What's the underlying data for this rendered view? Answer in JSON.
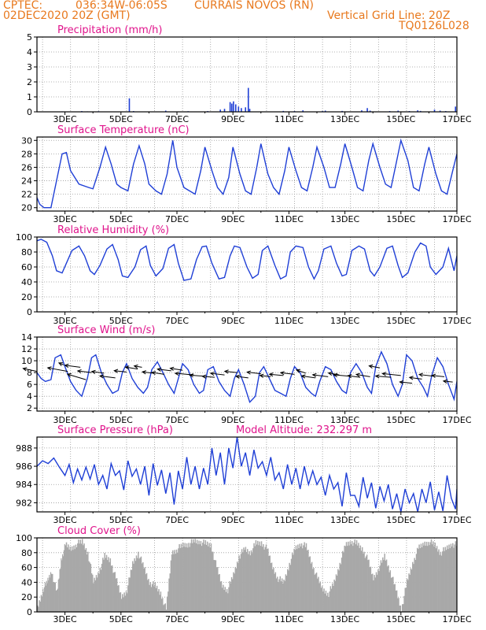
{
  "header": {
    "agency": "CPTEC:",
    "coords": "036:34W-06:05S",
    "station": "CURRAIS NOVOS (RN)",
    "run": "02DEC2020 20Z (GMT)",
    "grid_line": "Vertical Grid Line: 20Z",
    "code": "TQ0126L028"
  },
  "colors": {
    "header": "#e8791e",
    "title": "#e0148c",
    "series": "#1f3fd6",
    "cloud": "#a8a8a8",
    "wind_arrow": "#000000"
  },
  "x_ticks": [
    "3DEC",
    "5DEC",
    "7DEC",
    "9DEC",
    "11DEC",
    "13DEC",
    "15DEC",
    "17DEC"
  ],
  "chart_data": [
    {
      "type": "bar",
      "title": "Precipitation (mm/h)",
      "ylim": [
        0,
        5
      ],
      "yticks": [
        "0",
        "1",
        "2",
        "3",
        "4",
        "5"
      ],
      "days_start": 2.0,
      "days_end": 17.0,
      "bars": [
        [
          2.3,
          0.02
        ],
        [
          2.9,
          0.03
        ],
        [
          3.6,
          0.05
        ],
        [
          3.8,
          0.03
        ],
        [
          4.2,
          0.04
        ],
        [
          5.3,
          0.9
        ],
        [
          5.45,
          0.05
        ],
        [
          6.6,
          0.08
        ],
        [
          7.4,
          0.04
        ],
        [
          8.1,
          0.05
        ],
        [
          8.55,
          0.15
        ],
        [
          8.7,
          0.2
        ],
        [
          8.9,
          0.65
        ],
        [
          8.96,
          0.55
        ],
        [
          9.02,
          0.7
        ],
        [
          9.1,
          0.5
        ],
        [
          9.2,
          0.35
        ],
        [
          9.3,
          0.25
        ],
        [
          9.45,
          0.3
        ],
        [
          9.55,
          1.6
        ],
        [
          9.6,
          0.2
        ],
        [
          10.8,
          0.06
        ],
        [
          11.2,
          0.05
        ],
        [
          11.5,
          0.1
        ],
        [
          12.2,
          0.05
        ],
        [
          12.3,
          0.08
        ],
        [
          12.9,
          0.06
        ],
        [
          13.6,
          0.1
        ],
        [
          13.8,
          0.25
        ],
        [
          13.9,
          0.08
        ],
        [
          14.6,
          0.05
        ],
        [
          14.9,
          0.08
        ],
        [
          15.3,
          0.05
        ],
        [
          15.6,
          0.1
        ],
        [
          15.7,
          0.06
        ],
        [
          16.2,
          0.15
        ],
        [
          16.4,
          0.08
        ],
        [
          16.6,
          0.05
        ],
        [
          16.95,
          0.35
        ]
      ]
    },
    {
      "type": "line",
      "title": "Surface Temperature (nC)",
      "ylim": [
        19.5,
        30.5
      ],
      "yticks": [
        "20",
        "22",
        "24",
        "26",
        "28",
        "30"
      ],
      "x": [
        2.0,
        2.1,
        2.25,
        2.5,
        2.65,
        2.9,
        3.05,
        3.2,
        3.5,
        3.85,
        4.0,
        4.25,
        4.45,
        4.65,
        4.85,
        5.0,
        5.25,
        5.45,
        5.65,
        5.85,
        6.0,
        6.25,
        6.45,
        6.65,
        6.85,
        7.0,
        7.25,
        7.45,
        7.65,
        7.85,
        8.0,
        8.25,
        8.45,
        8.65,
        8.85,
        9.0,
        9.25,
        9.45,
        9.65,
        9.85,
        10.0,
        10.25,
        10.45,
        10.65,
        10.85,
        11.0,
        11.25,
        11.45,
        11.65,
        11.85,
        12.0,
        12.25,
        12.45,
        12.65,
        12.85,
        13.0,
        13.25,
        13.45,
        13.65,
        13.85,
        14.0,
        14.25,
        14.45,
        14.65,
        14.85,
        15.0,
        15.25,
        15.45,
        15.65,
        15.85,
        16.0,
        16.25,
        16.45,
        16.65,
        16.85,
        17.0
      ],
      "y": [
        21.5,
        20.5,
        20.0,
        20.0,
        23.0,
        28.0,
        28.2,
        25.5,
        23.5,
        23.0,
        22.8,
        26.0,
        29.0,
        26.5,
        23.5,
        23.0,
        22.5,
        26.5,
        29.2,
        26.5,
        23.5,
        22.5,
        22.0,
        25.0,
        30.0,
        26.0,
        23.0,
        22.5,
        22.0,
        25.5,
        29.0,
        25.5,
        23.0,
        22.0,
        24.5,
        29.0,
        25.0,
        22.5,
        22.0,
        26.0,
        29.5,
        25.0,
        23.0,
        22.0,
        25.5,
        29.0,
        25.5,
        23.0,
        22.5,
        26.0,
        29.0,
        26.0,
        23.0,
        23.0,
        26.5,
        29.5,
        26.0,
        23.0,
        22.5,
        27.0,
        29.5,
        26.0,
        23.5,
        23.0,
        27.0,
        30.0,
        27.0,
        23.0,
        22.5,
        26.5,
        29.0,
        25.0,
        22.5,
        22.0,
        25.5,
        28.0
      ]
    },
    {
      "type": "line",
      "title": "Relative Humidity (%)",
      "ylim": [
        0,
        100
      ],
      "yticks": [
        "0",
        "20",
        "40",
        "60",
        "80",
        "100"
      ],
      "x": [
        2.0,
        2.15,
        2.35,
        2.55,
        2.7,
        2.9,
        3.05,
        3.25,
        3.5,
        3.7,
        3.9,
        4.05,
        4.25,
        4.5,
        4.7,
        4.9,
        5.05,
        5.25,
        5.5,
        5.7,
        5.9,
        6.05,
        6.25,
        6.5,
        6.7,
        6.9,
        7.05,
        7.25,
        7.5,
        7.7,
        7.9,
        8.05,
        8.25,
        8.5,
        8.7,
        8.9,
        9.05,
        9.25,
        9.5,
        9.7,
        9.9,
        10.05,
        10.25,
        10.5,
        10.7,
        10.9,
        11.05,
        11.25,
        11.5,
        11.7,
        11.9,
        12.05,
        12.25,
        12.5,
        12.7,
        12.9,
        13.05,
        13.25,
        13.5,
        13.7,
        13.9,
        14.05,
        14.25,
        14.5,
        14.7,
        14.9,
        15.05,
        15.25,
        15.5,
        15.7,
        15.9,
        16.05,
        16.25,
        16.5,
        16.7,
        16.9,
        17.0
      ],
      "y": [
        95,
        97,
        93,
        75,
        55,
        52,
        65,
        82,
        88,
        75,
        55,
        50,
        62,
        84,
        90,
        70,
        48,
        46,
        60,
        83,
        88,
        62,
        48,
        58,
        85,
        90,
        65,
        42,
        44,
        70,
        87,
        88,
        65,
        44,
        46,
        75,
        88,
        86,
        60,
        45,
        50,
        82,
        88,
        62,
        44,
        48,
        80,
        88,
        86,
        60,
        44,
        55,
        84,
        88,
        65,
        48,
        50,
        82,
        88,
        84,
        55,
        48,
        60,
        85,
        88,
        62,
        46,
        52,
        80,
        92,
        88,
        60,
        50,
        60,
        85,
        55,
        75
      ]
    },
    {
      "type": "line",
      "title": "Surface Wind (m/s)",
      "ylim": [
        1.5,
        14
      ],
      "yticks": [
        "2",
        "4",
        "6",
        "8",
        "10",
        "12",
        "14"
      ],
      "x": [
        2.0,
        2.15,
        2.3,
        2.5,
        2.65,
        2.85,
        3.0,
        3.2,
        3.4,
        3.6,
        3.8,
        3.95,
        4.1,
        4.3,
        4.5,
        4.7,
        4.9,
        5.05,
        5.2,
        5.4,
        5.6,
        5.8,
        5.95,
        6.1,
        6.3,
        6.5,
        6.7,
        6.9,
        7.05,
        7.2,
        7.4,
        7.6,
        7.8,
        7.95,
        8.1,
        8.3,
        8.5,
        8.7,
        8.9,
        9.05,
        9.2,
        9.4,
        9.6,
        9.8,
        9.95,
        10.1,
        10.3,
        10.5,
        10.7,
        10.9,
        11.05,
        11.2,
        11.4,
        11.6,
        11.8,
        11.95,
        12.1,
        12.3,
        12.5,
        12.7,
        12.9,
        13.05,
        13.2,
        13.4,
        13.6,
        13.8,
        13.95,
        14.1,
        14.3,
        14.5,
        14.7,
        14.9,
        15.05,
        15.2,
        15.4,
        15.6,
        15.8,
        15.95,
        16.1,
        16.3,
        16.5,
        16.7,
        16.9,
        17.0
      ],
      "y": [
        8.0,
        7.0,
        6.5,
        6.8,
        10.5,
        11.0,
        9.0,
        6.5,
        5.0,
        4.0,
        7.0,
        10.5,
        11.0,
        8.0,
        6.0,
        4.5,
        5.0,
        8.0,
        9.5,
        7.0,
        5.5,
        4.5,
        5.5,
        8.5,
        9.8,
        8.0,
        6.0,
        4.5,
        7.0,
        9.5,
        8.5,
        6.0,
        4.5,
        5.0,
        8.5,
        9.0,
        6.5,
        5.0,
        4.0,
        7.0,
        8.5,
        6.0,
        3.0,
        4.0,
        8.0,
        9.0,
        7.0,
        5.0,
        4.5,
        4.0,
        7.0,
        9.0,
        8.0,
        5.5,
        4.5,
        4.0,
        6.5,
        9.0,
        8.5,
        6.5,
        5.0,
        4.5,
        8.0,
        9.5,
        8.0,
        5.5,
        4.5,
        9.0,
        11.5,
        9.5,
        6.0,
        4.0,
        6.0,
        11.0,
        10.0,
        7.0,
        5.5,
        4.0,
        7.5,
        10.5,
        9.0,
        6.0,
        3.5,
        6.5
      ],
      "arrows": [
        [
          2.0,
          8.2,
          -0.9,
          0.9
        ],
        [
          2.95,
          9.3,
          -0.3,
          0.6
        ],
        [
          3.1,
          8.2,
          -1.3,
          1.1
        ],
        [
          3.55,
          8.9,
          -1.0,
          0.6
        ],
        [
          3.75,
          6.8,
          -1.2,
          1.7
        ],
        [
          3.95,
          8.0,
          -0.9,
          0.5
        ],
        [
          4.4,
          7.9,
          -0.8,
          0.5
        ],
        [
          4.8,
          7.1,
          -1.0,
          0.6
        ],
        [
          5.2,
          8.1,
          -0.8,
          0.4
        ],
        [
          5.6,
          8.6,
          -0.8,
          0.6
        ],
        [
          5.75,
          8.9,
          -0.5,
          0.4
        ],
        [
          6.15,
          7.9,
          -0.7,
          0.4
        ],
        [
          6.55,
          7.7,
          -0.8,
          0.6
        ],
        [
          6.8,
          8.3,
          -0.9,
          0.5
        ],
        [
          7.2,
          8.4,
          -0.8,
          0.6
        ],
        [
          7.6,
          7.6,
          -1.2,
          0.5
        ],
        [
          7.95,
          7.4,
          -0.9,
          0.3
        ],
        [
          8.35,
          7.2,
          -0.8,
          0.3
        ],
        [
          8.7,
          7.6,
          -0.9,
          0.5
        ],
        [
          9.15,
          8.0,
          -0.8,
          0.4
        ],
        [
          9.55,
          7.1,
          -0.8,
          0.5
        ],
        [
          10.0,
          7.8,
          -0.9,
          0.5
        ],
        [
          10.35,
          7.3,
          -0.7,
          0.4
        ],
        [
          10.8,
          7.5,
          -0.9,
          0.4
        ],
        [
          11.2,
          7.7,
          -0.9,
          0.5
        ],
        [
          11.6,
          7.9,
          -0.6,
          1.0
        ],
        [
          11.95,
          7.1,
          -0.9,
          0.6
        ],
        [
          12.4,
          7.3,
          -1.0,
          0.6
        ],
        [
          12.8,
          7.6,
          -0.7,
          0.6
        ],
        [
          13.15,
          7.4,
          -1.0,
          0.4
        ],
        [
          13.55,
          7.2,
          -0.8,
          0.5
        ],
        [
          13.9,
          7.3,
          -0.9,
          0.7
        ],
        [
          14.25,
          8.8,
          -0.7,
          0.6
        ],
        [
          14.65,
          7.2,
          -1.0,
          0.4
        ],
        [
          15.0,
          7.5,
          -1.2,
          0.6
        ],
        [
          15.4,
          6.2,
          -0.8,
          0.4
        ],
        [
          15.75,
          6.9,
          -0.8,
          0.5
        ],
        [
          16.15,
          7.4,
          -0.9,
          0.5
        ],
        [
          16.55,
          7.3,
          -0.8,
          0.4
        ],
        [
          16.85,
          6.4,
          -0.6,
          0.3
        ]
      ]
    },
    {
      "type": "line",
      "title": "Surface Pressure (hPa)",
      "annotation": "Model Altitude: 232.297 m",
      "ylim": [
        981,
        989.2
      ],
      "yticks": [
        "982",
        "984",
        "986",
        "988"
      ],
      "x": [
        2.0,
        2.2,
        2.4,
        2.6,
        2.8,
        3.0,
        3.15,
        3.3,
        3.45,
        3.6,
        3.75,
        3.9,
        4.05,
        4.2,
        4.35,
        4.5,
        4.65,
        4.8,
        4.95,
        5.1,
        5.25,
        5.4,
        5.55,
        5.7,
        5.85,
        6.0,
        6.15,
        6.3,
        6.45,
        6.6,
        6.75,
        6.9,
        7.05,
        7.2,
        7.35,
        7.5,
        7.65,
        7.8,
        7.95,
        8.1,
        8.25,
        8.4,
        8.55,
        8.7,
        8.85,
        9.0,
        9.15,
        9.3,
        9.45,
        9.6,
        9.75,
        9.9,
        10.05,
        10.2,
        10.35,
        10.5,
        10.65,
        10.8,
        10.95,
        11.1,
        11.25,
        11.4,
        11.55,
        11.7,
        11.85,
        12.0,
        12.15,
        12.3,
        12.45,
        12.6,
        12.75,
        12.9,
        13.05,
        13.2,
        13.35,
        13.5,
        13.65,
        13.8,
        13.95,
        14.1,
        14.25,
        14.4,
        14.55,
        14.7,
        14.85,
        15.0,
        15.15,
        15.3,
        15.45,
        15.6,
        15.75,
        15.9,
        16.05,
        16.2,
        16.35,
        16.5,
        16.65,
        16.8,
        16.95,
        17.0
      ],
      "y": [
        986.0,
        986.6,
        986.3,
        986.9,
        985.9,
        985.0,
        986.2,
        984.2,
        985.7,
        984.5,
        985.9,
        984.6,
        986.2,
        984.0,
        985.0,
        983.5,
        986.3,
        985.0,
        985.5,
        983.4,
        986.6,
        984.9,
        985.7,
        984.0,
        986.0,
        982.8,
        986.3,
        983.9,
        985.6,
        983.0,
        985.3,
        981.8,
        985.5,
        983.5,
        987.0,
        984.0,
        986.0,
        983.5,
        985.8,
        984.0,
        988.0,
        985.0,
        987.5,
        984.0,
        988.0,
        985.8,
        989.2,
        986.0,
        987.5,
        985.0,
        987.8,
        985.8,
        986.5,
        985.0,
        987.0,
        984.5,
        985.3,
        983.5,
        986.2,
        984.0,
        985.8,
        983.5,
        986.0,
        984.0,
        985.5,
        984.0,
        984.8,
        982.8,
        985.0,
        983.5,
        984.2,
        981.6,
        985.3,
        982.8,
        982.8,
        981.6,
        984.8,
        982.5,
        984.2,
        981.4,
        983.8,
        982.2,
        984.0,
        981.3,
        983.0,
        981.0,
        983.5,
        982.0,
        983.0,
        981.0,
        983.5,
        982.0,
        984.3,
        981.2,
        983.2,
        981.1,
        985.0,
        982.5,
        981.3,
        983.5
      ]
    },
    {
      "type": "area",
      "title": "Cloud Cover (%)",
      "ylim": [
        0,
        100
      ],
      "yticks": [
        "0",
        "20",
        "40",
        "60",
        "80",
        "100"
      ],
      "x": [
        2.0,
        2.2,
        2.35,
        2.5,
        2.7,
        2.85,
        3.0,
        3.2,
        3.4,
        3.6,
        3.8,
        4.0,
        4.2,
        4.4,
        4.6,
        4.8,
        5.0,
        5.2,
        5.4,
        5.6,
        5.8,
        6.0,
        6.2,
        6.4,
        6.6,
        6.8,
        7.0,
        7.2,
        7.4,
        7.6,
        7.8,
        8.0,
        8.2,
        8.4,
        8.6,
        8.8,
        9.0,
        9.2,
        9.4,
        9.6,
        9.8,
        10.0,
        10.2,
        10.4,
        10.6,
        10.8,
        11.0,
        11.2,
        11.4,
        11.6,
        11.8,
        12.0,
        12.2,
        12.4,
        12.6,
        12.8,
        13.0,
        13.2,
        13.4,
        13.6,
        13.8,
        14.0,
        14.2,
        14.4,
        14.6,
        14.8,
        15.0,
        15.2,
        15.4,
        15.6,
        15.8,
        16.0,
        16.2,
        16.4,
        16.6,
        16.8,
        17.0
      ],
      "y": [
        5,
        30,
        40,
        55,
        25,
        70,
        90,
        85,
        92,
        95,
        80,
        40,
        55,
        75,
        70,
        45,
        20,
        30,
        65,
        80,
        60,
        40,
        35,
        25,
        3,
        80,
        85,
        90,
        92,
        95,
        95,
        92,
        90,
        60,
        35,
        30,
        50,
        75,
        85,
        80,
        92,
        93,
        85,
        60,
        45,
        40,
        65,
        85,
        92,
        88,
        65,
        45,
        30,
        25,
        40,
        65,
        90,
        95,
        92,
        85,
        70,
        45,
        60,
        75,
        55,
        30,
        3,
        40,
        65,
        85,
        92,
        95,
        90,
        80,
        85,
        92,
        90
      ]
    }
  ]
}
